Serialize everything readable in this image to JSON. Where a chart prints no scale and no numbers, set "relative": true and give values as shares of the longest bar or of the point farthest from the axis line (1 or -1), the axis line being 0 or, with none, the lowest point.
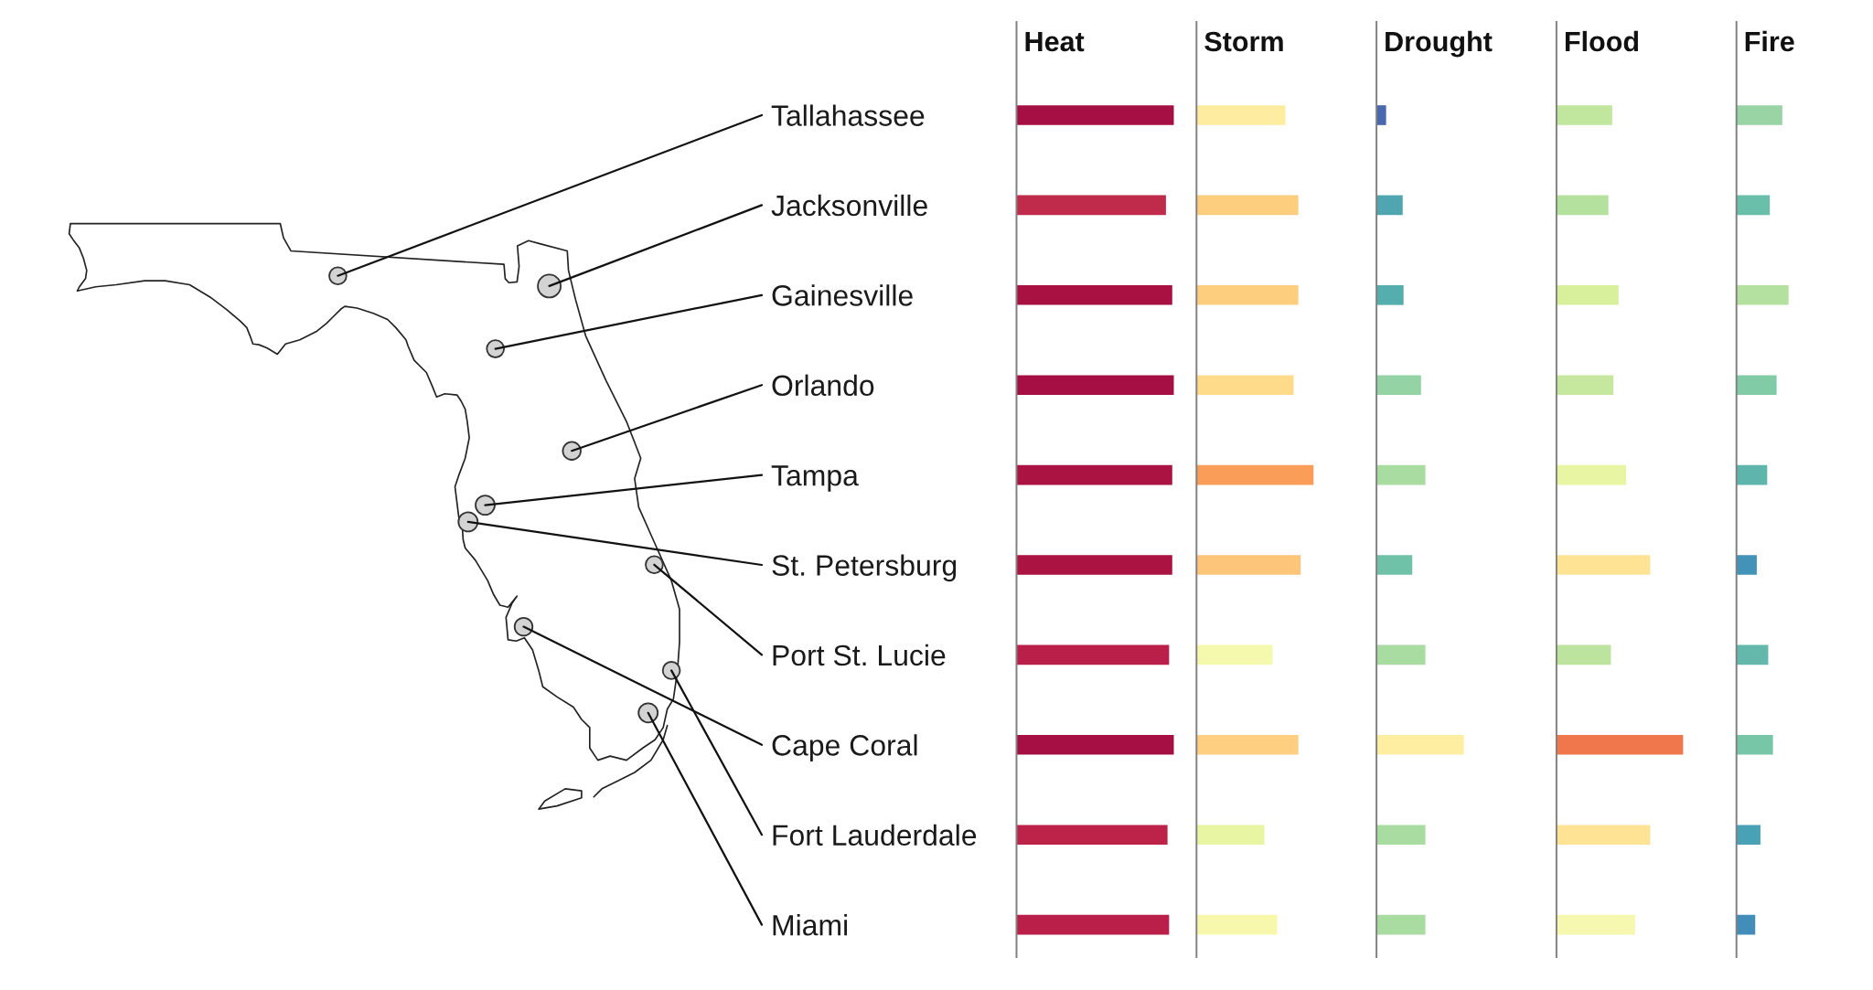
{
  "chart_data": [
    {
      "type": "bar",
      "orientation": "horizontal",
      "relative": true,
      "title": "Heat",
      "tick_labels": "y",
      "categories": [
        "Tallahassee",
        "Jacksonville",
        "Gainesville",
        "Orlando",
        "Tampa",
        "St. Petersburg",
        "Port St. Lucie",
        "Cape Coral",
        "Fort Lauderdale",
        "Miami"
      ],
      "values": [
        1,
        0.95,
        0.99,
        1,
        0.99,
        0.99,
        0.97,
        1,
        0.96,
        0.97
      ],
      "colors": [
        "#a50f43",
        "#c12b4b",
        "#aa1143",
        "#a50f43",
        "#ab1343",
        "#ab1343",
        "#b91f48",
        "#a50f43",
        "#bd2349",
        "#b91f48"
      ]
    },
    {
      "type": "bar",
      "orientation": "horizontal",
      "relative": true,
      "title": "Storm",
      "categories": [
        null,
        null,
        null,
        null,
        null,
        null,
        null,
        null,
        null,
        null
      ],
      "values": [
        0.76,
        0.87,
        0.87,
        0.83,
        1,
        0.89,
        0.65,
        0.87,
        0.58,
        0.69
      ],
      "colors": [
        "#feeda0",
        "#fece7f",
        "#fece7f",
        "#fedb8b",
        "#f99d59",
        "#fdc57a",
        "#f5f9ae",
        "#fecf80",
        "#e8f5a2",
        "#f8f8ad"
      ]
    },
    {
      "type": "bar",
      "orientation": "horizontal",
      "relative": true,
      "title": "Drought",
      "categories": [
        null,
        null,
        null,
        null,
        null,
        null,
        null,
        null,
        null,
        null
      ],
      "values": [
        0.11,
        0.3,
        0.31,
        0.51,
        0.56,
        0.41,
        0.56,
        1,
        0.56,
        0.56
      ],
      "colors": [
        "#4a68ad",
        "#4fa6b1",
        "#54aeae",
        "#94d4a4",
        "#a9dca0",
        "#6fc2a7",
        "#a9dca0",
        "#feeea2",
        "#a9dca0",
        "#a9dca0"
      ]
    },
    {
      "type": "bar",
      "orientation": "horizontal",
      "relative": true,
      "title": "Flood",
      "categories": [
        null,
        null,
        null,
        null,
        null,
        null,
        null,
        null,
        null,
        null
      ],
      "values": [
        0.44,
        0.41,
        0.49,
        0.45,
        0.55,
        0.74,
        0.43,
        1,
        0.74,
        0.62
      ],
      "colors": [
        "#c1e69e",
        "#b5e19f",
        "#d8ef9c",
        "#c6e79e",
        "#e8f5a2",
        "#fde393",
        "#bde49e",
        "#f0774c",
        "#fde393",
        "#f5f8ae"
      ]
    },
    {
      "type": "bar",
      "orientation": "horizontal",
      "relative": true,
      "title": "Fire",
      "categories": [
        null,
        null,
        null,
        null,
        null,
        null,
        null,
        null,
        null,
        null
      ],
      "values": [
        0.88,
        0.64,
        1,
        0.77,
        0.59,
        0.39,
        0.61,
        0.7,
        0.46,
        0.36
      ],
      "colors": [
        "#99d5a4",
        "#6abfaa",
        "#b4e19f",
        "#81cba6",
        "#5eb5ab",
        "#4392b8",
        "#64b7ab",
        "#76c6a7",
        "#48a1b4",
        "#438dba"
      ]
    }
  ]
}
